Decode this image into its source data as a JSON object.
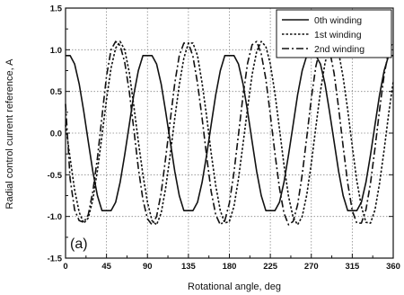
{
  "chart_data": {
    "type": "line",
    "xlabel": "Rotational angle, deg",
    "ylabel": "Radial control current reference, A",
    "panel_label": "(a)",
    "xlim": [
      0,
      360
    ],
    "ylim": [
      -1.5,
      1.5
    ],
    "x_ticks": [
      "0",
      "45",
      "90",
      "135",
      "180",
      "225",
      "270",
      "315",
      "360"
    ],
    "y_ticks": [
      "1.5",
      "1.0",
      "0.5",
      "0.0",
      "-0.5",
      "-1.0",
      "-1.5"
    ],
    "grid": true,
    "legend_position": "top-right",
    "series": [
      {
        "name": "0th winding",
        "style": "solid",
        "x": [
          0,
          5,
          10,
          15,
          20,
          25,
          30,
          35,
          40,
          45,
          50,
          55,
          60,
          65,
          70,
          75,
          80,
          85,
          90,
          95,
          100,
          105,
          110,
          115,
          120,
          125,
          130,
          135,
          140,
          145,
          150,
          155,
          160,
          165,
          170,
          175,
          180,
          185,
          190,
          195,
          200,
          205,
          210,
          215,
          220,
          225,
          230,
          235,
          240,
          245,
          250,
          255,
          260,
          265,
          270,
          275,
          280,
          285,
          290,
          295,
          300,
          305,
          310,
          315,
          320,
          325,
          330,
          335,
          340,
          345,
          350,
          355,
          360
        ],
        "y": [
          0.93,
          0.93,
          0.83,
          0.59,
          0.26,
          -0.1,
          -0.46,
          -0.75,
          -0.93,
          -0.93,
          -0.93,
          -0.83,
          -0.59,
          -0.26,
          0.1,
          0.46,
          0.75,
          0.93,
          0.93,
          0.93,
          0.83,
          0.59,
          0.26,
          -0.1,
          -0.46,
          -0.75,
          -0.93,
          -0.93,
          -0.93,
          -0.83,
          -0.59,
          -0.26,
          0.1,
          0.46,
          0.75,
          0.93,
          0.93,
          0.93,
          0.83,
          0.59,
          0.26,
          -0.1,
          -0.46,
          -0.75,
          -0.93,
          -0.93,
          -0.93,
          -0.83,
          -0.59,
          -0.26,
          0.1,
          0.46,
          0.75,
          0.93,
          0.93,
          0.93,
          0.83,
          0.59,
          0.26,
          -0.1,
          -0.46,
          -0.75,
          -0.93,
          -0.93,
          -0.93,
          -0.83,
          -0.59,
          -0.26,
          0.1,
          0.46,
          0.75,
          0.93,
          0.93
        ]
      },
      {
        "name": "1st winding",
        "style": "dotted",
        "x": [
          0,
          5,
          10,
          15,
          20,
          25,
          30,
          35,
          40,
          45,
          50,
          55,
          60,
          65,
          70,
          75,
          80,
          85,
          90,
          95,
          100,
          105,
          110,
          115,
          120,
          125,
          130,
          135,
          140,
          145,
          150,
          155,
          160,
          165,
          170,
          175,
          180,
          185,
          190,
          195,
          200,
          205,
          210,
          215,
          220,
          225,
          230,
          235,
          240,
          245,
          250,
          255,
          260,
          265,
          270,
          275,
          280,
          285,
          290,
          295,
          300,
          305,
          310,
          315,
          320,
          325,
          330,
          335,
          340,
          345,
          350,
          355,
          360
        ],
        "y": [
          0.1,
          -0.3,
          -0.68,
          -0.95,
          -1.08,
          -1.02,
          -0.8,
          -0.45,
          -0.03,
          0.4,
          0.78,
          1.02,
          1.1,
          1.0,
          0.73,
          0.33,
          -0.1,
          -0.5,
          -0.83,
          -1.05,
          -1.1,
          -0.96,
          -0.66,
          -0.26,
          0.18,
          0.58,
          0.9,
          1.08,
          1.08,
          0.93,
          0.6,
          0.2,
          -0.24,
          -0.63,
          -0.93,
          -1.08,
          -1.06,
          -0.88,
          -0.55,
          -0.13,
          0.3,
          0.7,
          0.98,
          1.1,
          1.04,
          0.83,
          0.48,
          0.05,
          -0.38,
          -0.76,
          -1.01,
          -1.1,
          -1.0,
          -0.74,
          -0.36,
          0.07,
          0.5,
          0.84,
          1.05,
          1.1,
          0.97,
          0.67,
          0.28,
          -0.16,
          -0.57,
          -0.88,
          -1.07,
          -1.08,
          -0.92,
          -0.6,
          -0.2,
          0.23,
          0.62
        ]
      },
      {
        "name": "2nd winding",
        "style": "dashdot",
        "x": [
          0,
          5,
          10,
          15,
          20,
          25,
          30,
          35,
          40,
          45,
          50,
          55,
          60,
          65,
          70,
          75,
          80,
          85,
          90,
          95,
          100,
          105,
          110,
          115,
          120,
          125,
          130,
          135,
          140,
          145,
          150,
          155,
          160,
          165,
          170,
          175,
          180,
          185,
          190,
          195,
          200,
          205,
          210,
          215,
          220,
          225,
          230,
          235,
          240,
          245,
          250,
          255,
          260,
          265,
          270,
          275,
          280,
          285,
          290,
          295,
          300,
          305,
          310,
          315,
          320,
          325,
          330,
          335,
          340,
          345,
          350,
          355,
          360
        ],
        "y": [
          0.35,
          -0.55,
          -0.92,
          -1.05,
          -1.07,
          -0.98,
          -0.7,
          -0.3,
          0.2,
          0.68,
          1.0,
          1.1,
          1.05,
          0.85,
          0.5,
          0.05,
          -0.42,
          -0.8,
          -1.03,
          -1.1,
          -1.0,
          -0.72,
          -0.3,
          0.15,
          0.6,
          0.93,
          1.08,
          1.08,
          0.92,
          0.6,
          0.18,
          -0.28,
          -0.7,
          -0.98,
          -1.1,
          -1.05,
          -0.84,
          -0.47,
          -0.02,
          0.45,
          0.84,
          1.06,
          1.1,
          0.95,
          0.65,
          0.22,
          -0.24,
          -0.66,
          -0.96,
          -1.1,
          -1.06,
          -0.86,
          -0.5,
          -0.05,
          0.42,
          0.8,
          1.03,
          1.1,
          1.0,
          0.72,
          0.3,
          -0.16,
          -0.6,
          -0.93,
          -1.08,
          -1.08,
          -0.92,
          -0.6,
          -0.18,
          0.28,
          0.7,
          0.98,
          1.1
        ]
      }
    ]
  },
  "colors": {
    "background": "#ffffff",
    "line": "#111111",
    "grid": "#888888"
  }
}
